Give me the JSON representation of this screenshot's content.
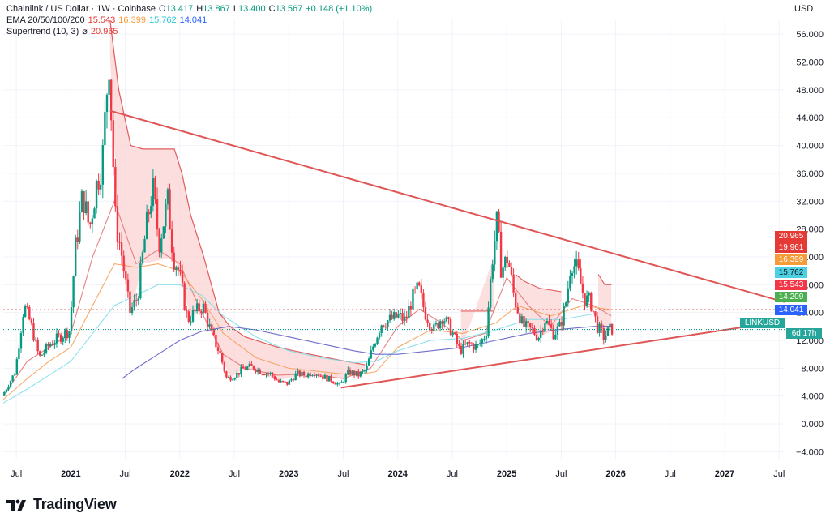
{
  "legend": {
    "row1": {
      "title": "Chainlink / US Dollar · 1W · Coinbase",
      "o_label": "O",
      "o": "13.417",
      "h_label": "H",
      "h": "13.867",
      "l_label": "L",
      "l": "13.400",
      "c_label": "C",
      "c": "13.567",
      "change": "+0.148 (+1.10%)"
    },
    "row2": {
      "name": "EMA 20/50/100/200",
      "v20": "15.543",
      "v50": "16.399",
      "v100": "15.762",
      "v200": "14.041"
    },
    "row3": {
      "name": "Supertrend (10, 3)",
      "symbol": "⌀",
      "value": "20.965"
    }
  },
  "currency": "USD",
  "footer": {
    "brand": "TradingView"
  },
  "tags": {
    "symbol": "LINKUSD",
    "countdown": "6d 17h",
    "prices": [
      {
        "text": "20.965",
        "color": "#e53935"
      },
      {
        "text": "19.961",
        "color": "#e53935"
      },
      {
        "text": "16.399",
        "color": "#f59c38"
      },
      {
        "text": "15.762",
        "color": "#4dd0e1",
        "dark": true
      },
      {
        "text": "15.543",
        "color": "#f23645"
      },
      {
        "text": "14.209",
        "color": "#4caf50"
      },
      {
        "text": "14.041",
        "color": "#2962ff"
      }
    ]
  },
  "colors": {
    "up": "#089981",
    "down": "#f23645",
    "trendline": "#e05555",
    "ema20": "#e57373",
    "ema50": "#f5a05a",
    "ema100": "#80deea",
    "ema200": "#5e5cc8",
    "st_down_fill": "#fbd3d3",
    "st_up_fill": "#d7f0da",
    "hline": "#e53935",
    "grid": "#f0f3fa"
  },
  "chart_data": {
    "type": "candlestick",
    "title": "Chainlink / US Dollar · 1W · Coinbase",
    "y_axis": {
      "ticks": [
        -4,
        0,
        4,
        8,
        12,
        16,
        20,
        24,
        28,
        32,
        36,
        40,
        44,
        48,
        52,
        56
      ],
      "tick_labels": [
        "−4.000",
        "0.000",
        "4.000",
        "8.000",
        "12.000",
        "16.000",
        "20.000",
        "24.000",
        "28.000",
        "32.000",
        "36.000",
        "40.000",
        "44.000",
        "48.000",
        "52.000",
        "56.000"
      ],
      "ylim": [
        -5,
        58
      ]
    },
    "x_axis": {
      "tick_labels": [
        "Jul",
        "2021",
        "Jul",
        "2022",
        "Jul",
        "2023",
        "Jul",
        "2024",
        "Jul",
        "2025",
        "Jul",
        "2026",
        "Jul",
        "2027",
        "Jul"
      ],
      "tick_dates": [
        2020.5,
        2021.0,
        2021.5,
        2022.0,
        2022.5,
        2023.0,
        2023.5,
        2024.0,
        2024.5,
        2025.0,
        2025.5,
        2026.0,
        2026.5,
        2027.0,
        2027.5
      ],
      "xlim": [
        2020.38,
        2027.55
      ]
    },
    "price_path": [
      [
        2020.38,
        4.0
      ],
      [
        2020.5,
        7.5
      ],
      [
        2020.58,
        17.0
      ],
      [
        2020.64,
        14.5
      ],
      [
        2020.72,
        9.5
      ],
      [
        2020.82,
        11.5
      ],
      [
        2020.95,
        13.0
      ],
      [
        2021.0,
        13.5
      ],
      [
        2021.05,
        25.0
      ],
      [
        2021.12,
        33.0
      ],
      [
        2021.18,
        28.0
      ],
      [
        2021.24,
        34.0
      ],
      [
        2021.3,
        38.0
      ],
      [
        2021.36,
        52.8
      ],
      [
        2021.42,
        29.0
      ],
      [
        2021.47,
        25.0
      ],
      [
        2021.55,
        16.0
      ],
      [
        2021.62,
        18.0
      ],
      [
        2021.7,
        28.0
      ],
      [
        2021.76,
        34.0
      ],
      [
        2021.82,
        26.0
      ],
      [
        2021.9,
        32.0
      ],
      [
        2021.95,
        24.0
      ],
      [
        2022.0,
        22.0
      ],
      [
        2022.08,
        15.0
      ],
      [
        2022.15,
        16.0
      ],
      [
        2022.22,
        17.0
      ],
      [
        2022.3,
        13.0
      ],
      [
        2022.38,
        10.0
      ],
      [
        2022.44,
        6.5
      ],
      [
        2022.52,
        7.0
      ],
      [
        2022.6,
        8.0
      ],
      [
        2022.68,
        8.2
      ],
      [
        2022.76,
        7.5
      ],
      [
        2022.84,
        7.2
      ],
      [
        2022.92,
        6.0
      ],
      [
        2023.0,
        5.8
      ],
      [
        2023.08,
        7.2
      ],
      [
        2023.16,
        7.0
      ],
      [
        2023.24,
        7.5
      ],
      [
        2023.32,
        6.8
      ],
      [
        2023.42,
        6.2
      ],
      [
        2023.48,
        5.5
      ],
      [
        2023.56,
        7.5
      ],
      [
        2023.65,
        7.0
      ],
      [
        2023.72,
        7.8
      ],
      [
        2023.78,
        11.0
      ],
      [
        2023.86,
        14.5
      ],
      [
        2023.95,
        15.0
      ],
      [
        2024.02,
        15.5
      ],
      [
        2024.08,
        14.8
      ],
      [
        2024.14,
        18.0
      ],
      [
        2024.2,
        19.5
      ],
      [
        2024.26,
        16.0
      ],
      [
        2024.34,
        13.5
      ],
      [
        2024.42,
        15.5
      ],
      [
        2024.5,
        13.5
      ],
      [
        2024.58,
        10.5
      ],
      [
        2024.66,
        11.5
      ],
      [
        2024.74,
        11.0
      ],
      [
        2024.82,
        13.0
      ],
      [
        2024.88,
        24.0
      ],
      [
        2024.92,
        29.0
      ],
      [
        2024.96,
        22.0
      ],
      [
        2025.02,
        24.0
      ],
      [
        2025.08,
        18.0
      ],
      [
        2025.16,
        14.0
      ],
      [
        2025.24,
        13.5
      ],
      [
        2025.3,
        12.5
      ],
      [
        2025.36,
        15.0
      ],
      [
        2025.44,
        13.0
      ],
      [
        2025.5,
        14.0
      ],
      [
        2025.56,
        18.0
      ],
      [
        2025.6,
        23.5
      ],
      [
        2025.66,
        22.0
      ],
      [
        2025.72,
        18.0
      ],
      [
        2025.78,
        17.5
      ],
      [
        2025.84,
        14.0
      ],
      [
        2025.9,
        12.5
      ],
      [
        2025.96,
        13.6
      ]
    ],
    "series": [
      {
        "name": "Supertrend (10, 3)",
        "line_points": [
          [
            2021.36,
            58.0
          ],
          [
            2021.44,
            48.0
          ],
          [
            2021.55,
            40.0
          ],
          [
            2021.66,
            39.5
          ],
          [
            2021.95,
            39.5
          ],
          [
            2022.02,
            36.0
          ],
          [
            2022.1,
            30.0
          ],
          [
            2022.22,
            24.0
          ],
          [
            2022.36,
            16.0
          ],
          [
            2022.46,
            14.0
          ],
          [
            2022.6,
            12.5
          ],
          [
            2022.9,
            11.0
          ],
          [
            2023.2,
            10.0
          ],
          [
            2023.52,
            9.0
          ],
          [
            2023.7,
            8.5
          ]
        ]
      },
      {
        "name": "EMA 20",
        "points": [
          [
            2020.38,
            4.0
          ],
          [
            2020.6,
            9.0
          ],
          [
            2020.8,
            11.0
          ],
          [
            2021.0,
            13.0
          ],
          [
            2021.2,
            24.0
          ],
          [
            2021.4,
            32.0
          ],
          [
            2021.6,
            23.0
          ],
          [
            2021.8,
            25.0
          ],
          [
            2022.0,
            23.0
          ],
          [
            2022.2,
            16.0
          ],
          [
            2022.4,
            10.0
          ],
          [
            2022.6,
            8.0
          ],
          [
            2022.9,
            7.0
          ],
          [
            2023.2,
            7.2
          ],
          [
            2023.5,
            6.5
          ],
          [
            2023.75,
            8.0
          ],
          [
            2024.0,
            14.0
          ],
          [
            2024.2,
            16.5
          ],
          [
            2024.4,
            14.5
          ],
          [
            2024.6,
            12.0
          ],
          [
            2024.8,
            13.0
          ],
          [
            2025.0,
            21.0
          ],
          [
            2025.2,
            17.0
          ],
          [
            2025.4,
            14.0
          ],
          [
            2025.6,
            18.0
          ],
          [
            2025.8,
            17.0
          ],
          [
            2025.96,
            15.5
          ]
        ]
      },
      {
        "name": "EMA 50",
        "points": [
          [
            2020.38,
            3.5
          ],
          [
            2020.6,
            6.5
          ],
          [
            2020.8,
            9.0
          ],
          [
            2021.0,
            11.0
          ],
          [
            2021.2,
            17.0
          ],
          [
            2021.4,
            23.0
          ],
          [
            2021.6,
            22.5
          ],
          [
            2021.8,
            23.0
          ],
          [
            2022.0,
            22.0
          ],
          [
            2022.2,
            18.0
          ],
          [
            2022.4,
            13.0
          ],
          [
            2022.7,
            9.5
          ],
          [
            2023.0,
            8.0
          ],
          [
            2023.3,
            7.5
          ],
          [
            2023.6,
            7.0
          ],
          [
            2023.8,
            7.5
          ],
          [
            2024.0,
            11.0
          ],
          [
            2024.3,
            13.5
          ],
          [
            2024.6,
            13.0
          ],
          [
            2024.9,
            14.5
          ],
          [
            2025.1,
            17.0
          ],
          [
            2025.4,
            15.5
          ],
          [
            2025.7,
            17.0
          ],
          [
            2025.96,
            16.4
          ]
        ]
      },
      {
        "name": "EMA 100",
        "points": [
          [
            2020.38,
            3.0
          ],
          [
            2020.6,
            5.0
          ],
          [
            2020.8,
            7.0
          ],
          [
            2021.0,
            9.0
          ],
          [
            2021.2,
            13.0
          ],
          [
            2021.4,
            17.0
          ],
          [
            2021.6,
            18.5
          ],
          [
            2021.8,
            20.0
          ],
          [
            2022.0,
            20.0
          ],
          [
            2022.2,
            18.5
          ],
          [
            2022.4,
            15.5
          ],
          [
            2022.7,
            12.5
          ],
          [
            2023.0,
            10.5
          ],
          [
            2023.3,
            9.5
          ],
          [
            2023.6,
            8.8
          ],
          [
            2023.8,
            9.0
          ],
          [
            2024.0,
            10.5
          ],
          [
            2024.3,
            12.0
          ],
          [
            2024.6,
            12.3
          ],
          [
            2024.9,
            13.5
          ],
          [
            2025.2,
            15.0
          ],
          [
            2025.5,
            15.0
          ],
          [
            2025.8,
            15.8
          ],
          [
            2025.96,
            15.76
          ]
        ]
      },
      {
        "name": "EMA 200",
        "points": [
          [
            2021.47,
            6.5
          ],
          [
            2021.6,
            8.0
          ],
          [
            2021.8,
            10.0
          ],
          [
            2022.0,
            12.0
          ],
          [
            2022.2,
            13.3
          ],
          [
            2022.45,
            14.0
          ],
          [
            2022.7,
            13.5
          ],
          [
            2023.0,
            12.5
          ],
          [
            2023.3,
            11.5
          ],
          [
            2023.6,
            10.5
          ],
          [
            2023.8,
            10.0
          ],
          [
            2024.0,
            10.0
          ],
          [
            2024.3,
            10.5
          ],
          [
            2024.6,
            11.0
          ],
          [
            2024.9,
            12.0
          ],
          [
            2025.2,
            13.0
          ],
          [
            2025.5,
            13.6
          ],
          [
            2025.8,
            14.0
          ],
          [
            2025.96,
            14.04
          ]
        ]
      }
    ],
    "supertrend_down_segments": [
      [
        [
          2024.58,
          16.2
        ],
        [
          2024.88,
          16.2
        ]
      ],
      [
        [
          2025.08,
          21.5
        ],
        [
          2025.16,
          20.5
        ],
        [
          2025.3,
          19.5
        ],
        [
          2025.5,
          19.0
        ]
      ],
      [
        [
          2025.84,
          21.5
        ],
        [
          2025.9,
          20.0
        ],
        [
          2025.96,
          20.0
        ]
      ]
    ],
    "trendlines": [
      {
        "name": "upper",
        "from": [
          2021.36,
          45.0
        ],
        "to": [
          2027.55,
          17.5
        ]
      },
      {
        "name": "lower",
        "from": [
          2023.48,
          5.2
        ],
        "to": [
          2027.55,
          14.8
        ]
      }
    ],
    "horizontal_lines": [
      {
        "value": 16.4,
        "style": "dotted",
        "color": "#e53935"
      },
      {
        "value": 13.567,
        "style": "dotted",
        "color": "#089981"
      }
    ],
    "last_close": 13.567
  }
}
